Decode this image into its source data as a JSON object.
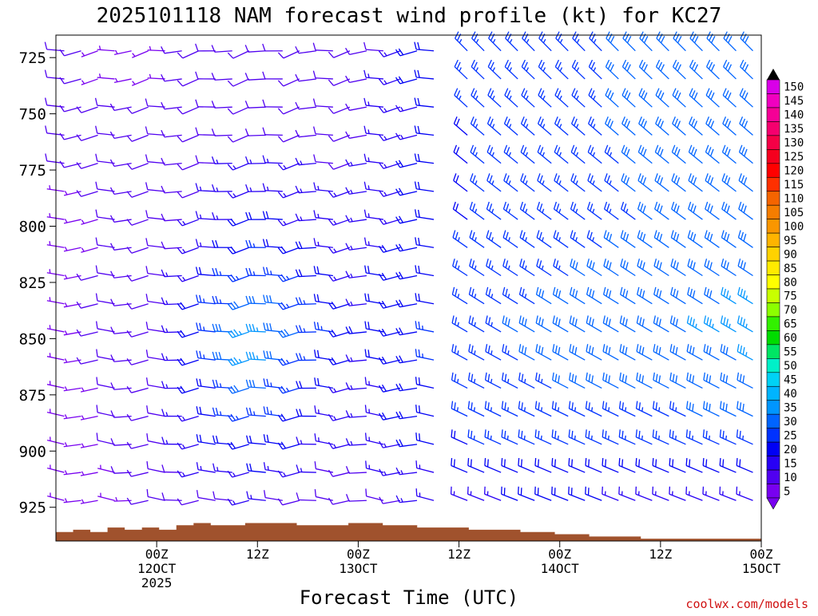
{
  "chart_data": {
    "type": "wind-barb-time-height",
    "title": "2025101118 NAM forecast wind profile (kt) for KC27",
    "xlabel": "Forecast Time (UTC)",
    "credit": "coolwx.com/models",
    "y_axis": {
      "unit": "hPa",
      "range": [
        940,
        715
      ],
      "ticks": [
        "725",
        "750",
        "775",
        "800",
        "825",
        "850",
        "875",
        "900",
        "925"
      ]
    },
    "x_axis": {
      "range_hours_from_00Z_12OCT": [
        -12,
        72
      ],
      "ticks": [
        {
          "hour": 0,
          "lines": [
            "00Z",
            "12OCT",
            "2025"
          ]
        },
        {
          "hour": 12,
          "lines": [
            "12Z"
          ]
        },
        {
          "hour": 24,
          "lines": [
            "00Z",
            "13OCT"
          ]
        },
        {
          "hour": 36,
          "lines": [
            "12Z"
          ]
        },
        {
          "hour": 48,
          "lines": [
            "00Z",
            "14OCT"
          ]
        },
        {
          "hour": 60,
          "lines": [
            "12Z"
          ]
        },
        {
          "hour": 72,
          "lines": [
            "00Z",
            "15OCT"
          ]
        }
      ]
    },
    "colorbar": {
      "unit": "kt",
      "levels": [
        "150",
        "145",
        "140",
        "135",
        "130",
        "125",
        "120",
        "115",
        "110",
        "105",
        "100",
        "95",
        "90",
        "85",
        "80",
        "75",
        "70",
        "65",
        "60",
        "55",
        "50",
        "45",
        "40",
        "35",
        "30",
        "25",
        "20",
        "15",
        "10",
        "5"
      ],
      "colors": [
        "#d900e8",
        "#f000c0",
        "#f50096",
        "#f5006e",
        "#f50046",
        "#f5001e",
        "#ff0000",
        "#ff3000",
        "#f56400",
        "#f57d00",
        "#fa9600",
        "#ffb400",
        "#ffd200",
        "#ffeb00",
        "#ffff00",
        "#c8ff00",
        "#8cff00",
        "#32f000",
        "#00dc00",
        "#00e664",
        "#00f0c8",
        "#00d2f5",
        "#00b4ff",
        "#0096ff",
        "#0064ff",
        "#0032ff",
        "#0000f5",
        "#2800f5",
        "#5000f0",
        "#7800f0"
      ]
    },
    "surface_pressure_hpa": [
      936,
      935,
      936,
      934,
      935,
      934,
      935,
      933,
      932,
      933,
      933,
      932,
      932,
      932,
      933,
      933,
      933,
      932,
      932,
      933,
      933,
      934,
      934,
      934,
      935,
      935,
      935,
      936,
      936,
      937,
      937,
      938,
      938,
      938,
      939,
      939,
      939,
      939,
      939,
      939,
      939
    ],
    "wind_profile": {
      "description": "Barbs every ~2 h and 25 hPa-style spacing; speeds (kt) and directions (deg) as displayed",
      "times_hours": [
        -12,
        0,
        12,
        24,
        36,
        48,
        60,
        72
      ],
      "levels_hpa": [
        725,
        750,
        800,
        850,
        900,
        925
      ],
      "speed_kt": [
        [
          8,
          6,
          12,
          8,
          25,
          25,
          30,
          28
        ],
        [
          8,
          8,
          10,
          10,
          22,
          25,
          30,
          28
        ],
        [
          7,
          8,
          20,
          14,
          22,
          25,
          28,
          30
        ],
        [
          6,
          10,
          38,
          18,
          25,
          30,
          32,
          35
        ],
        [
          5,
          10,
          22,
          12,
          22,
          25,
          25,
          25
        ],
        [
          4,
          8,
          12,
          8,
          15,
          18,
          15,
          12
        ]
      ]
    }
  }
}
